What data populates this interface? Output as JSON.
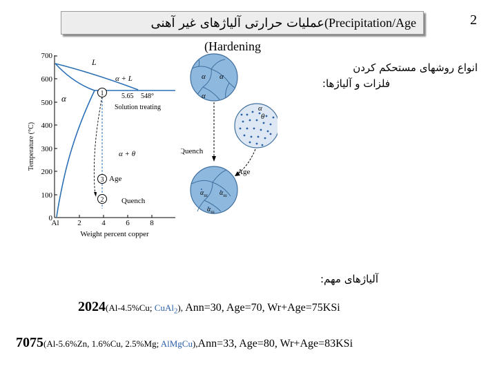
{
  "page_number": "2",
  "title": {
    "persian": "عملیات حرارتی آلیاژهای غیر آهنی",
    "open": "(",
    "english_part1": "Precipitation/Age",
    "english_part2": "(Hardening"
  },
  "intro": {
    "line1": "انواع روشهای مستحکم کردن",
    "line2": "فلزات و آلیاژها:"
  },
  "important_alloys_label": "آلیاژهای مهم:",
  "alloys": [
    {
      "number": "2024",
      "comp_prefix": "(Al-4.5%Cu; ",
      "comp_colored": "CuAl",
      "comp_sub": "2",
      "comp_suffix": "), ",
      "props": "Ann=30,  Age=70, Wr+Age=75KSi"
    },
    {
      "number": "7075",
      "comp_prefix": "(Al-5.6%Zn, 1.6%Cu, 2.5%Mg; ",
      "comp_colored": "AlMgCu",
      "comp_sub": "",
      "comp_suffix": "),",
      "props": "Ann=33,  Age=80, Wr+Age=83KSi"
    }
  ],
  "phase_diagram": {
    "ylabel": "Temperature (°C)",
    "xlabel": "Weight percent copper",
    "y_ticks": [
      "700",
      "600",
      "500",
      "400",
      "300",
      "200",
      "100",
      "0"
    ],
    "x_ticks": [
      "Al",
      "2",
      "4",
      "6",
      "8"
    ],
    "region_labels": {
      "liquid": "L",
      "alpha_liquid": "α + L",
      "alpha": "α",
      "alpha_theta": "α + θ"
    },
    "annotations": {
      "composition": "5.65",
      "temperature": "548°",
      "solution_treating": "Solution treating",
      "age": "Age",
      "quench": "Quench"
    },
    "steps": [
      "1",
      "2",
      "3"
    ]
  },
  "micrographs": {
    "alpha": "α",
    "theta": "θ",
    "quench": "Quench",
    "age": "Age",
    "alpha_ss": "α",
    "alpha_ss_sub": "ss",
    "colors": {
      "grain_fill": "#8fb8de",
      "grain_stroke": "#3f6f9e",
      "precipitate": "#2a5ea8",
      "curve": "#2a6fb5"
    }
  }
}
